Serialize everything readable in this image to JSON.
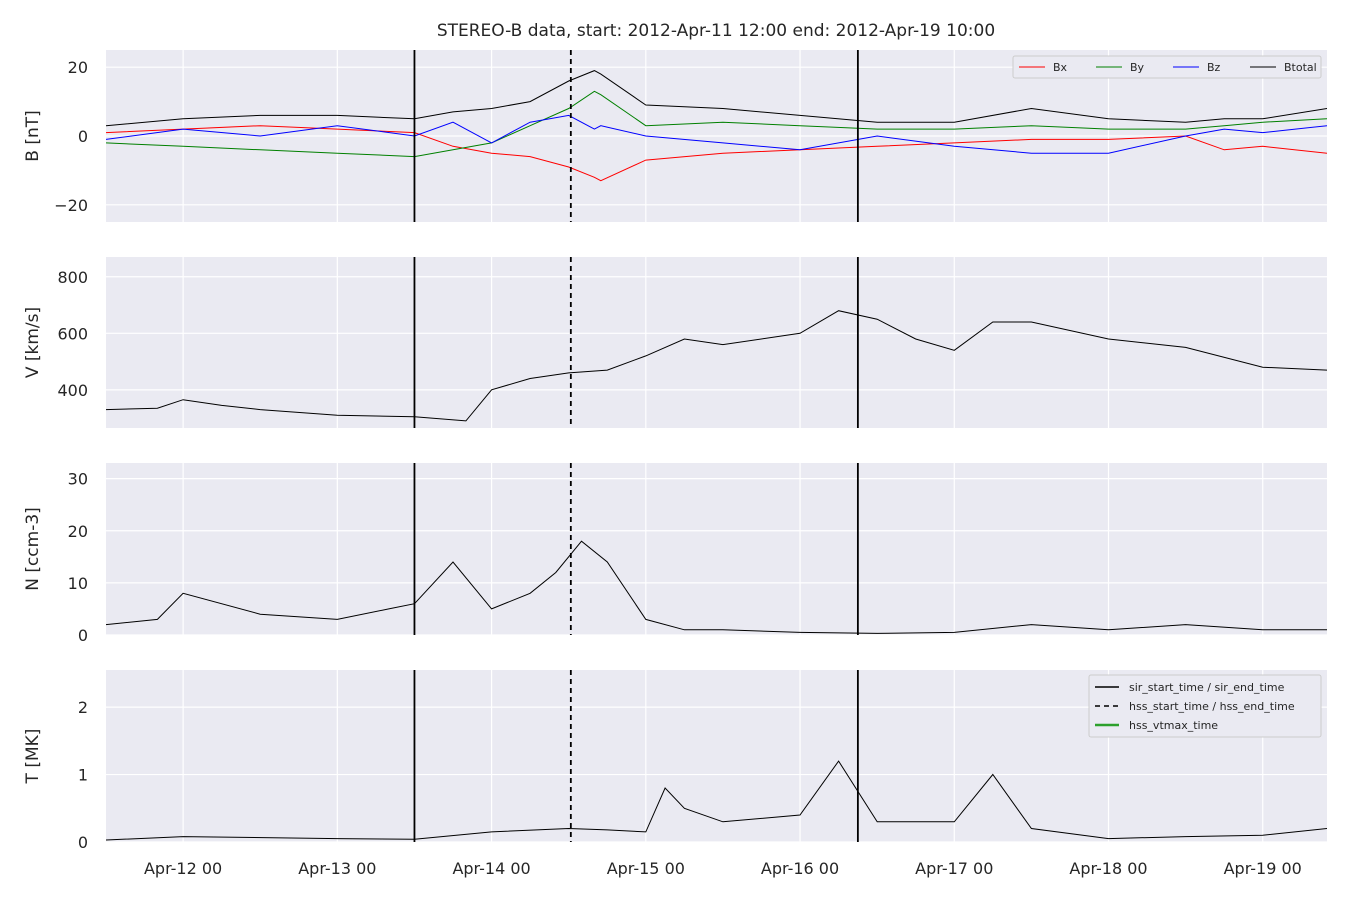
{
  "chart_data": {
    "type": "line",
    "title": "STEREO-B data, start: 2012-Apr-11 12:00  end: 2012-Apr-19 10:00",
    "x_range": [
      "2012-04-11T12:00",
      "2012-04-19T10:00"
    ],
    "x_tick_labels": [
      "Apr-12 00",
      "Apr-13 00",
      "Apr-14 00",
      "Apr-15 00",
      "Apr-16 00",
      "Apr-17 00",
      "Apr-18 00",
      "Apr-19 00"
    ],
    "x_ticks": [
      "2012-04-12T00:00",
      "2012-04-13T00:00",
      "2012-04-14T00:00",
      "2012-04-15T00:00",
      "2012-04-16T00:00",
      "2012-04-17T00:00",
      "2012-04-18T00:00",
      "2012-04-19T00:00"
    ],
    "grid": true,
    "markers": {
      "sir_start_time": "2012-04-13T12:00",
      "sir_end_time": "2012-04-16T09:00",
      "hss_start_time": "2012-04-14T12:20"
    },
    "panels": [
      {
        "id": "B",
        "ylabel": "B [nT]",
        "ylim": [
          -25,
          25
        ],
        "yticks": [
          -20,
          0,
          20
        ],
        "legend": {
          "placement": "top-right",
          "entries": [
            "Bx",
            "By",
            "Bz",
            "Btotal"
          ]
        },
        "series": [
          {
            "name": "Bx",
            "color": "#ff0000",
            "x": [
              "2012-04-11T12:00",
              "2012-04-12T00:00",
              "2012-04-12T12:00",
              "2012-04-13T00:00",
              "2012-04-13T12:00",
              "2012-04-13T18:00",
              "2012-04-14T00:00",
              "2012-04-14T06:00",
              "2012-04-14T12:00",
              "2012-04-14T16:00",
              "2012-04-14T17:00",
              "2012-04-15T00:00",
              "2012-04-15T12:00",
              "2012-04-16T00:00",
              "2012-04-16T12:00",
              "2012-04-17T00:00",
              "2012-04-17T12:00",
              "2012-04-18T00:00",
              "2012-04-18T12:00",
              "2012-04-18T18:00",
              "2012-04-19T00:00",
              "2012-04-19T10:00"
            ],
            "y": [
              1,
              2,
              3,
              2,
              1,
              -3,
              -5,
              -6,
              -9,
              -12,
              -13,
              -7,
              -5,
              -4,
              -3,
              -2,
              -1,
              -1,
              0,
              -4,
              -3,
              -5
            ]
          },
          {
            "name": "By",
            "color": "#008000",
            "x": [
              "2012-04-11T12:00",
              "2012-04-12T00:00",
              "2012-04-12T12:00",
              "2012-04-13T00:00",
              "2012-04-13T12:00",
              "2012-04-13T18:00",
              "2012-04-14T00:00",
              "2012-04-14T06:00",
              "2012-04-14T12:00",
              "2012-04-14T16:00",
              "2012-04-14T17:00",
              "2012-04-15T00:00",
              "2012-04-15T12:00",
              "2012-04-16T00:00",
              "2012-04-16T12:00",
              "2012-04-17T00:00",
              "2012-04-17T12:00",
              "2012-04-18T00:00",
              "2012-04-18T12:00",
              "2012-04-18T18:00",
              "2012-04-19T00:00",
              "2012-04-19T10:00"
            ],
            "y": [
              -2,
              -3,
              -4,
              -5,
              -6,
              -4,
              -2,
              3,
              8,
              13,
              12,
              3,
              4,
              3,
              2,
              2,
              3,
              2,
              2,
              3,
              4,
              5
            ]
          },
          {
            "name": "Bz",
            "color": "#0000ff",
            "x": [
              "2012-04-11T12:00",
              "2012-04-12T00:00",
              "2012-04-12T12:00",
              "2012-04-13T00:00",
              "2012-04-13T12:00",
              "2012-04-13T18:00",
              "2012-04-14T00:00",
              "2012-04-14T06:00",
              "2012-04-14T12:00",
              "2012-04-14T16:00",
              "2012-04-14T17:00",
              "2012-04-15T00:00",
              "2012-04-15T12:00",
              "2012-04-16T00:00",
              "2012-04-16T12:00",
              "2012-04-17T00:00",
              "2012-04-17T12:00",
              "2012-04-18T00:00",
              "2012-04-18T12:00",
              "2012-04-18T18:00",
              "2012-04-19T00:00",
              "2012-04-19T10:00"
            ],
            "y": [
              -1,
              2,
              0,
              3,
              0,
              4,
              -2,
              4,
              6,
              2,
              3,
              0,
              -2,
              -4,
              0,
              -3,
              -5,
              -5,
              0,
              2,
              1,
              3
            ]
          },
          {
            "name": "Btotal",
            "color": "#000000",
            "x": [
              "2012-04-11T12:00",
              "2012-04-12T00:00",
              "2012-04-12T12:00",
              "2012-04-13T00:00",
              "2012-04-13T12:00",
              "2012-04-13T18:00",
              "2012-04-14T00:00",
              "2012-04-14T06:00",
              "2012-04-14T12:00",
              "2012-04-14T16:00",
              "2012-04-14T17:00",
              "2012-04-15T00:00",
              "2012-04-15T12:00",
              "2012-04-16T00:00",
              "2012-04-16T12:00",
              "2012-04-17T00:00",
              "2012-04-17T12:00",
              "2012-04-18T00:00",
              "2012-04-18T12:00",
              "2012-04-18T18:00",
              "2012-04-19T00:00",
              "2012-04-19T10:00"
            ],
            "y": [
              3,
              5,
              6,
              6,
              5,
              7,
              8,
              10,
              16,
              19,
              18,
              9,
              8,
              6,
              4,
              4,
              8,
              5,
              4,
              5,
              5,
              8
            ]
          }
        ]
      },
      {
        "id": "V",
        "ylabel": "V [km/s]",
        "ylim": [
          265,
          870
        ],
        "yticks": [
          400,
          600,
          800
        ],
        "series": [
          {
            "name": "V",
            "color": "#000000",
            "x": [
              "2012-04-11T12:00",
              "2012-04-11T20:00",
              "2012-04-12T00:00",
              "2012-04-12T06:00",
              "2012-04-12T12:00",
              "2012-04-13T00:00",
              "2012-04-13T12:00",
              "2012-04-13T20:00",
              "2012-04-14T00:00",
              "2012-04-14T06:00",
              "2012-04-14T12:00",
              "2012-04-14T18:00",
              "2012-04-15T00:00",
              "2012-04-15T06:00",
              "2012-04-15T12:00",
              "2012-04-16T00:00",
              "2012-04-16T06:00",
              "2012-04-16T12:00",
              "2012-04-16T18:00",
              "2012-04-17T00:00",
              "2012-04-17T06:00",
              "2012-04-17T12:00",
              "2012-04-18T00:00",
              "2012-04-18T12:00",
              "2012-04-19T00:00",
              "2012-04-19T10:00"
            ],
            "y": [
              330,
              335,
              365,
              345,
              330,
              310,
              305,
              290,
              400,
              440,
              460,
              470,
              520,
              580,
              560,
              600,
              680,
              650,
              580,
              540,
              640,
              640,
              580,
              550,
              480,
              470
            ]
          }
        ]
      },
      {
        "id": "N",
        "ylabel": "N [ccm-3]",
        "ylim": [
          0,
          33
        ],
        "yticks": [
          0,
          10,
          20,
          30
        ],
        "series": [
          {
            "name": "N",
            "color": "#000000",
            "x": [
              "2012-04-11T12:00",
              "2012-04-11T20:00",
              "2012-04-12T00:00",
              "2012-04-12T12:00",
              "2012-04-13T00:00",
              "2012-04-13T08:00",
              "2012-04-13T12:00",
              "2012-04-13T18:00",
              "2012-04-14T00:00",
              "2012-04-14T06:00",
              "2012-04-14T10:00",
              "2012-04-14T14:00",
              "2012-04-14T18:00",
              "2012-04-15T00:00",
              "2012-04-15T06:00",
              "2012-04-15T12:00",
              "2012-04-16T00:00",
              "2012-04-16T12:00",
              "2012-04-17T00:00",
              "2012-04-17T12:00",
              "2012-04-18T00:00",
              "2012-04-18T12:00",
              "2012-04-19T00:00",
              "2012-04-19T10:00"
            ],
            "y": [
              2,
              3,
              8,
              4,
              3,
              5,
              6,
              14,
              5,
              8,
              12,
              18,
              14,
              3,
              1,
              1,
              0.5,
              0.3,
              0.5,
              2,
              1,
              2,
              1,
              1
            ]
          }
        ]
      },
      {
        "id": "T",
        "ylabel": "T [MK]",
        "ylim": [
          0,
          2.55
        ],
        "yticks": [
          0,
          1,
          2
        ],
        "legend": {
          "placement": "top-right",
          "entries": [
            "sir_start_time / sir_end_time",
            "hss_start_time / hss_end_time",
            "hss_vtmax_time"
          ]
        },
        "series": [
          {
            "name": "T",
            "color": "#000000",
            "x": [
              "2012-04-11T12:00",
              "2012-04-12T00:00",
              "2012-04-13T00:00",
              "2012-04-13T12:00",
              "2012-04-14T00:00",
              "2012-04-14T12:00",
              "2012-04-14T18:00",
              "2012-04-15T00:00",
              "2012-04-15T03:00",
              "2012-04-15T06:00",
              "2012-04-15T12:00",
              "2012-04-16T00:00",
              "2012-04-16T06:00",
              "2012-04-16T12:00",
              "2012-04-17T00:00",
              "2012-04-17T06:00",
              "2012-04-17T12:00",
              "2012-04-18T00:00",
              "2012-04-18T12:00",
              "2012-04-19T00:00",
              "2012-04-19T10:00"
            ],
            "y": [
              0.03,
              0.08,
              0.05,
              0.04,
              0.15,
              0.2,
              0.18,
              0.15,
              0.8,
              0.5,
              0.3,
              0.4,
              1.2,
              0.3,
              0.3,
              1.0,
              0.2,
              0.05,
              0.08,
              0.1,
              0.2
            ]
          }
        ]
      }
    ],
    "legend_styles": {
      "sir_start_time / sir_end_time": {
        "color": "#000000",
        "dash": "solid"
      },
      "hss_start_time / hss_end_time": {
        "color": "#000000",
        "dash": "dashed"
      },
      "hss_vtmax_time": {
        "color": "#2ca02c",
        "dash": "solid"
      }
    }
  }
}
